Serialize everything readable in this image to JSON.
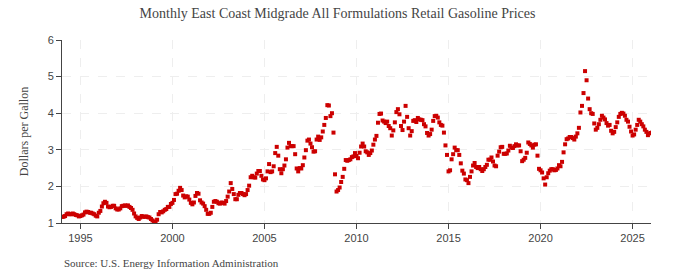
{
  "chart_data": {
    "type": "scatter",
    "title": "Monthly East Coast Midgrade All Formulations Retail Gasoline Prices",
    "y_label": "Dollars per Gallon",
    "annotations": [
      "Source: U.S. Energy Information Administration"
    ],
    "marker": "square",
    "color": "#cc0000",
    "grid": true,
    "xlim": [
      1994.0,
      2026.0
    ],
    "xticks": [
      1995,
      2000,
      2005,
      2010,
      2015,
      2020,
      2025
    ],
    "ylim": [
      1,
      6
    ],
    "yticks": [
      1,
      2,
      3,
      4,
      5,
      6
    ],
    "x": [
      1994,
      1994.0833333333333,
      1994.1666666666667,
      1994.25,
      1994.3333333333333,
      1994.4166666666667,
      1994.5,
      1994.5833333333333,
      1994.6666666666667,
      1994.75,
      1994.8333333333333,
      1994.9166666666667,
      1995,
      1995.0833333333333,
      1995.1666666666667,
      1995.25,
      1995.3333333333333,
      1995.4166666666667,
      1995.5,
      1995.5833333333333,
      1995.6666666666667,
      1995.75,
      1995.8333333333333,
      1995.9166666666667,
      1996,
      1996.0833333333333,
      1996.1666666666667,
      1996.25,
      1996.3333333333333,
      1996.4166666666667,
      1996.5,
      1996.5833333333333,
      1996.6666666666667,
      1996.75,
      1996.8333333333333,
      1996.9166666666667,
      1997,
      1997.0833333333333,
      1997.1666666666667,
      1997.25,
      1997.3333333333333,
      1997.4166666666667,
      1997.5,
      1997.5833333333333,
      1997.6666666666667,
      1997.75,
      1997.8333333333333,
      1997.9166666666667,
      1998,
      1998.0833333333333,
      1998.1666666666667,
      1998.25,
      1998.3333333333333,
      1998.4166666666667,
      1998.5,
      1998.5833333333333,
      1998.6666666666667,
      1998.75,
      1998.8333333333333,
      1998.9166666666667,
      1999,
      1999.0833333333333,
      1999.1666666666667,
      1999.25,
      1999.3333333333333,
      1999.4166666666667,
      1999.5,
      1999.5833333333333,
      1999.6666666666667,
      1999.75,
      1999.8333333333333,
      1999.9166666666667,
      2000,
      2000.0833333333333,
      2000.1666666666667,
      2000.25,
      2000.3333333333333,
      2000.4166666666667,
      2000.5,
      2000.5833333333333,
      2000.6666666666667,
      2000.75,
      2000.8333333333333,
      2000.9166666666667,
      2001,
      2001.0833333333333,
      2001.1666666666667,
      2001.25,
      2001.3333333333333,
      2001.4166666666667,
      2001.5,
      2001.5833333333333,
      2001.6666666666667,
      2001.75,
      2001.8333333333333,
      2001.9166666666667,
      2002,
      2002.0833333333333,
      2002.1666666666667,
      2002.25,
      2002.3333333333333,
      2002.4166666666667,
      2002.5,
      2002.5833333333333,
      2002.6666666666667,
      2002.75,
      2002.8333333333333,
      2002.9166666666667,
      2003,
      2003.0833333333333,
      2003.1666666666667,
      2003.25,
      2003.3333333333333,
      2003.4166666666667,
      2003.5,
      2003.5833333333333,
      2003.6666666666667,
      2003.75,
      2003.8333333333333,
      2003.9166666666667,
      2004,
      2004.0833333333333,
      2004.1666666666667,
      2004.25,
      2004.3333333333333,
      2004.4166666666667,
      2004.5,
      2004.5833333333333,
      2004.6666666666667,
      2004.75,
      2004.8333333333333,
      2004.9166666666667,
      2005,
      2005.0833333333333,
      2005.1666666666667,
      2005.25,
      2005.3333333333333,
      2005.4166666666667,
      2005.5,
      2005.5833333333333,
      2005.6666666666667,
      2005.75,
      2005.8333333333333,
      2005.9166666666667,
      2006,
      2006.0833333333333,
      2006.1666666666667,
      2006.25,
      2006.3333333333333,
      2006.4166666666667,
      2006.5,
      2006.5833333333333,
      2006.6666666666667,
      2006.75,
      2006.8333333333333,
      2006.9166666666667,
      2007,
      2007.0833333333333,
      2007.1666666666667,
      2007.25,
      2007.3333333333333,
      2007.4166666666667,
      2007.5,
      2007.5833333333333,
      2007.6666666666667,
      2007.75,
      2007.8333333333333,
      2007.9166666666667,
      2008,
      2008.0833333333333,
      2008.1666666666667,
      2008.25,
      2008.3333333333333,
      2008.4166666666667,
      2008.5,
      2008.5833333333333,
      2008.6666666666667,
      2008.75,
      2008.8333333333333,
      2008.9166666666667,
      2009,
      2009.0833333333333,
      2009.1666666666667,
      2009.25,
      2009.3333333333333,
      2009.4166666666667,
      2009.5,
      2009.5833333333333,
      2009.6666666666667,
      2009.75,
      2009.8333333333333,
      2009.9166666666667,
      2010,
      2010.0833333333333,
      2010.1666666666667,
      2010.25,
      2010.3333333333333,
      2010.4166666666667,
      2010.5,
      2010.5833333333333,
      2010.6666666666667,
      2010.75,
      2010.8333333333333,
      2010.9166666666667,
      2011,
      2011.0833333333333,
      2011.1666666666667,
      2011.25,
      2011.3333333333333,
      2011.4166666666667,
      2011.5,
      2011.5833333333333,
      2011.6666666666667,
      2011.75,
      2011.8333333333333,
      2011.9166666666667,
      2012,
      2012.0833333333333,
      2012.1666666666667,
      2012.25,
      2012.3333333333333,
      2012.4166666666667,
      2012.5,
      2012.5833333333333,
      2012.6666666666667,
      2012.75,
      2012.8333333333333,
      2012.9166666666667,
      2013,
      2013.0833333333333,
      2013.1666666666667,
      2013.25,
      2013.3333333333333,
      2013.4166666666667,
      2013.5,
      2013.5833333333333,
      2013.6666666666667,
      2013.75,
      2013.8333333333333,
      2013.9166666666667,
      2014,
      2014.0833333333333,
      2014.1666666666667,
      2014.25,
      2014.3333333333333,
      2014.4166666666667,
      2014.5,
      2014.5833333333333,
      2014.6666666666667,
      2014.75,
      2014.8333333333333,
      2014.9166666666667,
      2015,
      2015.0833333333333,
      2015.1666666666667,
      2015.25,
      2015.3333333333333,
      2015.4166666666667,
      2015.5,
      2015.5833333333333,
      2015.6666666666667,
      2015.75,
      2015.8333333333333,
      2015.9166666666667,
      2016,
      2016.0833333333333,
      2016.1666666666667,
      2016.25,
      2016.3333333333333,
      2016.4166666666667,
      2016.5,
      2016.5833333333333,
      2016.6666666666667,
      2016.75,
      2016.8333333333333,
      2016.9166666666667,
      2017,
      2017.0833333333333,
      2017.1666666666667,
      2017.25,
      2017.3333333333333,
      2017.4166666666667,
      2017.5,
      2017.5833333333333,
      2017.6666666666667,
      2017.75,
      2017.8333333333333,
      2017.9166666666667,
      2018,
      2018.0833333333333,
      2018.1666666666667,
      2018.25,
      2018.3333333333333,
      2018.4166666666667,
      2018.5,
      2018.5833333333333,
      2018.6666666666667,
      2018.75,
      2018.8333333333333,
      2018.9166666666667,
      2019,
      2019.0833333333333,
      2019.1666666666667,
      2019.25,
      2019.3333333333333,
      2019.4166666666667,
      2019.5,
      2019.5833333333333,
      2019.6666666666667,
      2019.75,
      2019.8333333333333,
      2019.9166666666667,
      2020,
      2020.0833333333333,
      2020.1666666666667,
      2020.25,
      2020.3333333333333,
      2020.4166666666667,
      2020.5,
      2020.5833333333333,
      2020.6666666666667,
      2020.75,
      2020.8333333333333,
      2020.9166666666667,
      2021,
      2021.0833333333333,
      2021.1666666666667,
      2021.25,
      2021.3333333333333,
      2021.4166666666667,
      2021.5,
      2021.5833333333333,
      2021.6666666666667,
      2021.75,
      2021.8333333333333,
      2021.9166666666667,
      2022,
      2022.0833333333333,
      2022.1666666666667,
      2022.25,
      2022.3333333333333,
      2022.4166666666667,
      2022.5,
      2022.5833333333333,
      2022.6666666666667,
      2022.75,
      2022.8333333333333,
      2022.9166666666667,
      2023,
      2023.0833333333333,
      2023.1666666666667,
      2023.25,
      2023.3333333333333,
      2023.4166666666667,
      2023.5,
      2023.5833333333333,
      2023.6666666666667,
      2023.75,
      2023.8333333333333,
      2023.9166666666667,
      2024,
      2024.0833333333333,
      2024.1666666666667,
      2024.25,
      2024.3333333333333,
      2024.4166666666667,
      2024.5,
      2024.5833333333333,
      2024.6666666666667,
      2024.75,
      2024.8333333333333,
      2024.9166666666667,
      2025,
      2025.0833333333333,
      2025.1666666666667,
      2025.25,
      2025.3333333333333,
      2025.4166666666667,
      2025.5,
      2025.5833333333333,
      2025.6666666666667,
      2025.75,
      2025.8333333333333,
      2025.9166666666667,
      2026,
      2026.0833333333333
    ],
    "values": [
      1.17,
      1.17,
      1.19,
      1.24,
      1.26,
      1.24,
      1.24,
      1.26,
      1.24,
      1.22,
      1.21,
      1.18,
      1.19,
      1.21,
      1.23,
      1.29,
      1.31,
      1.3,
      1.28,
      1.28,
      1.26,
      1.24,
      1.2,
      1.18,
      1.28,
      1.33,
      1.45,
      1.54,
      1.58,
      1.55,
      1.45,
      1.43,
      1.44,
      1.47,
      1.47,
      1.4,
      1.37,
      1.37,
      1.4,
      1.46,
      1.47,
      1.48,
      1.47,
      1.48,
      1.44,
      1.41,
      1.36,
      1.26,
      1.18,
      1.14,
      1.11,
      1.15,
      1.19,
      1.17,
      1.17,
      1.18,
      1.16,
      1.15,
      1.11,
      1.07,
      1.04,
      1.02,
      1.09,
      1.24,
      1.3,
      1.29,
      1.32,
      1.36,
      1.38,
      1.44,
      1.44,
      1.52,
      1.55,
      1.63,
      1.79,
      1.8,
      1.88,
      1.96,
      1.9,
      1.75,
      1.7,
      1.73,
      1.72,
      1.64,
      1.55,
      1.51,
      1.56,
      1.74,
      1.82,
      1.8,
      1.62,
      1.56,
      1.53,
      1.46,
      1.36,
      1.25,
      1.25,
      1.28,
      1.44,
      1.58,
      1.6,
      1.58,
      1.54,
      1.53,
      1.56,
      1.55,
      1.53,
      1.6,
      1.72,
      1.86,
      2.09,
      1.93,
      1.79,
      1.65,
      1.65,
      1.77,
      1.82,
      1.82,
      1.79,
      1.76,
      1.79,
      1.9,
      2.02,
      2.25,
      2.29,
      2.25,
      2.24,
      2.35,
      2.42,
      2.42,
      2.29,
      2.19,
      2.17,
      2.22,
      2.41,
      2.61,
      2.39,
      2.41,
      2.55,
      2.91,
      3.08,
      2.84,
      2.47,
      2.36,
      2.47,
      2.57,
      2.74,
      3.06,
      3.19,
      3.1,
      3.1,
      3.1,
      2.88,
      2.49,
      2.41,
      2.5,
      2.49,
      2.58,
      2.79,
      2.99,
      3.25,
      3.28,
      3.17,
      3.07,
      2.95,
      2.96,
      3.28,
      3.36,
      3.27,
      3.34,
      3.5,
      3.68,
      3.87,
      4.22,
      4.21,
      3.92,
      4.0,
      3.47,
      2.33,
      1.86,
      1.9,
      1.97,
      2.12,
      2.26,
      2.48,
      2.72,
      2.7,
      2.72,
      2.74,
      2.8,
      2.82,
      2.91,
      2.83,
      2.77,
      2.92,
      3.09,
      3.17,
      3.09,
      2.96,
      2.93,
      2.86,
      2.91,
      2.98,
      3.14,
      3.28,
      3.38,
      3.74,
      3.98,
      3.99,
      3.8,
      3.77,
      3.73,
      3.77,
      3.65,
      3.59,
      3.39,
      3.53,
      3.75,
      4.03,
      4.11,
      3.97,
      3.65,
      3.54,
      3.77,
      4.2,
      3.9,
      3.59,
      3.39,
      3.51,
      3.79,
      3.81,
      3.76,
      3.87,
      3.83,
      3.82,
      3.81,
      3.7,
      3.64,
      3.46,
      3.39,
      3.43,
      3.55,
      3.79,
      3.92,
      3.93,
      3.88,
      3.75,
      3.68,
      3.66,
      3.47,
      3.12,
      2.86,
      2.41,
      2.44,
      2.74,
      2.88,
      3.06,
      2.99,
      2.99,
      2.86,
      2.63,
      2.43,
      2.35,
      2.19,
      2.17,
      2.09,
      2.26,
      2.41,
      2.57,
      2.64,
      2.53,
      2.5,
      2.53,
      2.47,
      2.42,
      2.47,
      2.53,
      2.59,
      2.73,
      2.73,
      2.79,
      2.68,
      2.57,
      2.55,
      2.84,
      2.95,
      3.07,
      3.08,
      2.89,
      2.89,
      2.9,
      2.98,
      3.11,
      3.06,
      3.05,
      3.1,
      3.15,
      3.12,
      3.12,
      2.96,
      2.69,
      2.73,
      2.78,
      2.92,
      3.2,
      3.16,
      3.12,
      3.06,
      3.14,
      3.15,
      2.84,
      2.48,
      2.44,
      2.38,
      2.22,
      2.05,
      2.25,
      2.36,
      2.43,
      2.47,
      2.47,
      2.44,
      2.45,
      2.49,
      2.58,
      2.55,
      2.67,
      2.93,
      3.15,
      3.29,
      3.31,
      3.35,
      3.35,
      3.32,
      3.28,
      3.36,
      3.45,
      3.6,
      4.02,
      4.2,
      4.55,
      5.15,
      4.9,
      4.4,
      4.11,
      4.0,
      3.98,
      3.72,
      3.55,
      3.6,
      3.7,
      3.82,
      3.93,
      3.88,
      3.83,
      3.73,
      3.66,
      3.68,
      3.52,
      3.45,
      3.49,
      3.62,
      3.75,
      3.9,
      3.98,
      4.01,
      3.99,
      3.93,
      3.82,
      3.77,
      3.63,
      3.5,
      3.39,
      3.42,
      3.55,
      3.68,
      3.82,
      3.77,
      3.7,
      3.64,
      3.55,
      3.49,
      3.4,
      3.45,
      3.46,
      3.48
    ]
  }
}
